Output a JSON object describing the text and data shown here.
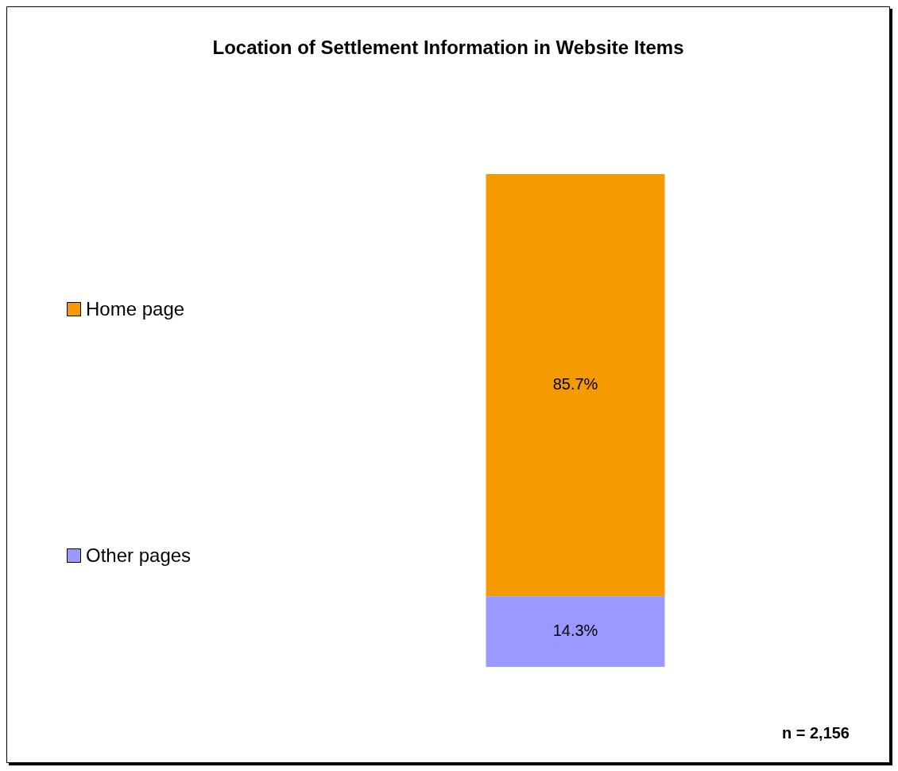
{
  "chart_data": {
    "type": "bar",
    "title": "Location of Settlement Information in Website Items",
    "categories": [
      null
    ],
    "stacked": true,
    "series": [
      {
        "name": "Other pages",
        "color": "#9999ff",
        "values": [
          14.3
        ],
        "value_labels": [
          "14.3%"
        ]
      },
      {
        "name": "Home page",
        "color": "#f59a00",
        "values": [
          85.7
        ],
        "value_labels": [
          "85.7%"
        ]
      }
    ],
    "legend": "left",
    "tick_labels": false,
    "annotations": [
      "n = 2,156"
    ]
  }
}
